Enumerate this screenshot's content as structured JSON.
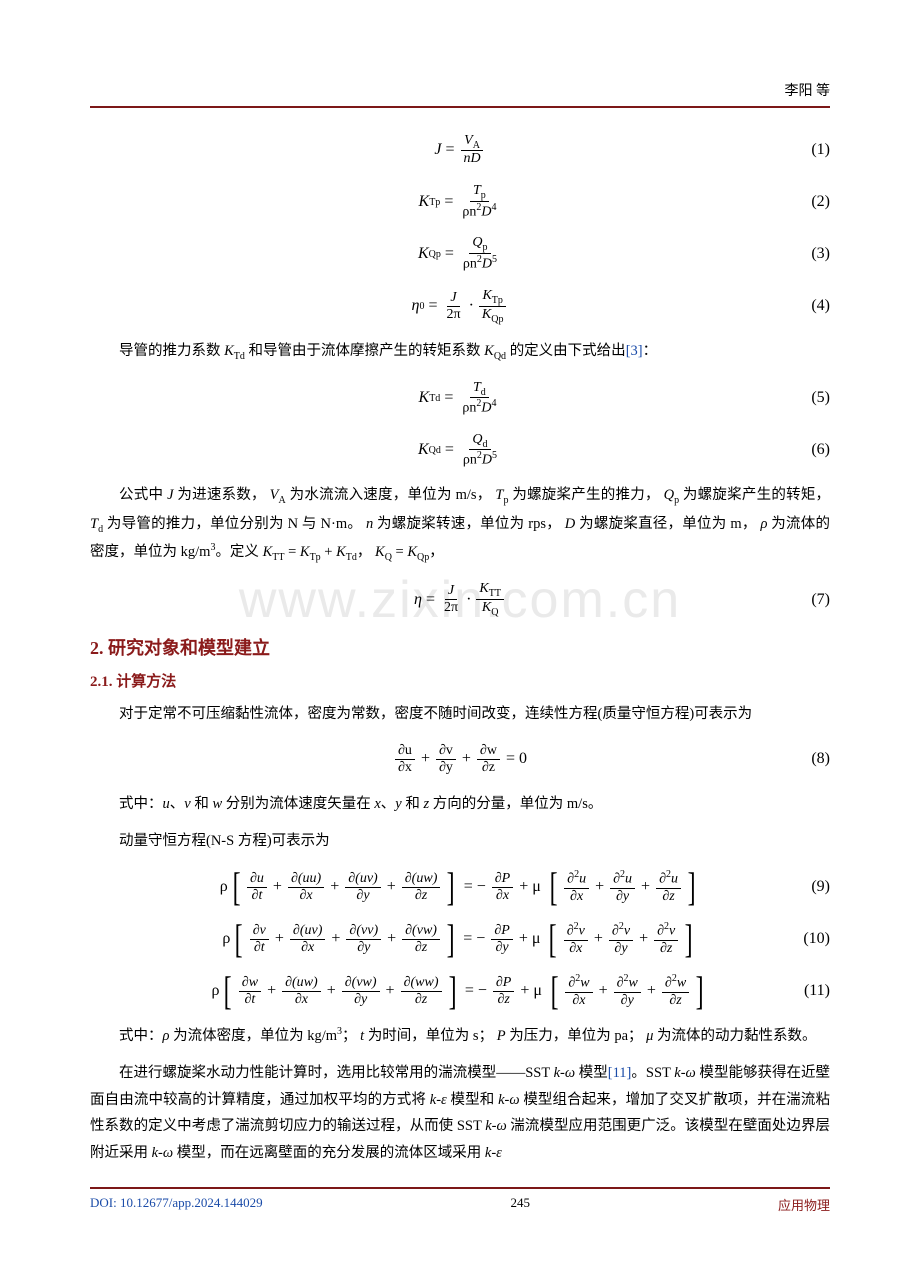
{
  "header": {
    "author": "李阳 等"
  },
  "watermark": "www.zixin.com.cn",
  "equations": {
    "eq1": {
      "lhs": "J",
      "num_n": "V",
      "num_n_sub": "A",
      "num_d": "nD",
      "label": "(1)"
    },
    "eq2": {
      "lhs": "K",
      "lhs_sub": "Tp",
      "n": "T",
      "n_sub": "p",
      "d_rho": "ρn",
      "d_exp1": "2",
      "d_D": "D",
      "d_exp2": "4",
      "label": "(2)"
    },
    "eq3": {
      "lhs": "K",
      "lhs_sub": "Qp",
      "n": "Q",
      "n_sub": "p",
      "d_exp2": "5",
      "label": "(3)"
    },
    "eq4": {
      "lhs": "η",
      "lhs_sub": "0",
      "f1_n": "J",
      "f1_d": "2π",
      "f2_n": "K",
      "f2_n_sub": "Tp",
      "f2_d": "K",
      "f2_d_sub": "Qp",
      "label": "(4)"
    },
    "eq5": {
      "lhs": "K",
      "lhs_sub": "Td",
      "n": "T",
      "n_sub": "d",
      "d_exp2": "4",
      "label": "(5)"
    },
    "eq6": {
      "lhs": "K",
      "lhs_sub": "Qd",
      "n": "Q",
      "n_sub": "d",
      "d_exp2": "5",
      "label": "(6)"
    },
    "eq7": {
      "lhs": "η",
      "f1_n": "J",
      "f1_d": "2π",
      "f2_n": "K",
      "f2_n_sub": "TT",
      "f2_d": "K",
      "f2_d_sub": "Q",
      "label": "(7)"
    },
    "eq8": {
      "t1n": "∂u",
      "t1d": "∂x",
      "t2n": "∂v",
      "t2d": "∂y",
      "t3n": "∂w",
      "t3d": "∂z",
      "rhs": "0",
      "label": "(8)"
    },
    "eq9": {
      "v": "u",
      "pvar": "x",
      "label": "(9)"
    },
    "eq10": {
      "v": "v",
      "pvar": "y",
      "label": "(10)"
    },
    "eq11": {
      "v": "w",
      "pvar": "z",
      "label": "(11)"
    }
  },
  "text": {
    "p1_pre": "导管的推力系数 ",
    "p1_k1": "K",
    "p1_k1_sub": "Td",
    "p1_mid1": " 和导管由于流体摩擦产生的转矩系数 ",
    "p1_k2": "K",
    "p1_k2_sub": "Qd",
    "p1_mid2": " 的定义由下式给出",
    "p1_cite": "[3]",
    "p1_end": "：",
    "p2_a": "公式中 ",
    "p2_J": "J",
    "p2_b": " 为进速系数，",
    "p2_V": "V",
    "p2_V_sub": "A",
    "p2_c": " 为水流流入速度，单位为 m/s，",
    "p2_Tp": "T",
    "p2_Tp_sub": "p",
    "p2_d": " 为螺旋桨产生的推力，",
    "p2_Qp": "Q",
    "p2_Qp_sub": "p",
    "p2_e": " 为螺旋桨产生的转矩，",
    "p2_Td": "T",
    "p2_Td_sub": "d",
    "p2_f": " 为导管的推力，单位分别为 N 与 N·m。",
    "p2_n": "n",
    "p2_g": " 为螺旋桨转速，单位为 rps，",
    "p2_D": "D",
    "p2_h": " 为螺旋桨直径，单位为 m，",
    "p2_rho": "ρ",
    "p2_i": " 为流体的密度，单位为 kg/m",
    "p2_exp3": "3",
    "p2_j": "。定义 ",
    "p2_KTT": "K",
    "p2_KTT_sub": "TT",
    "p2_eq": " = ",
    "p2_KTp": "K",
    "p2_KTp_sub": "Tp",
    "p2_plus": " + ",
    "p2_KTd": "K",
    "p2_KTd_sub": "Td",
    "p2_comma": "，",
    "p2_KQ": "K",
    "p2_KQ_sub": "Q",
    "p2_eq2": " = ",
    "p2_KQp": "K",
    "p2_KQp_sub": "Qp",
    "p2_end": "，",
    "p3": "对于定常不可压缩黏性流体，密度为常数，密度不随时间改变，连续性方程(质量守恒方程)可表示为",
    "p4_a": "式中：",
    "p4_u": "u",
    "p4_b": "、",
    "p4_v": "v",
    "p4_c": " 和 ",
    "p4_w": "w",
    "p4_d": " 分别为流体速度矢量在 ",
    "p4_x": "x",
    "p4_e": "、",
    "p4_y": "y",
    "p4_f": " 和 ",
    "p4_z": "z",
    "p4_g": " 方向的分量，单位为 m/s。",
    "p5": "动量守恒方程(N-S 方程)可表示为",
    "p6_a": "式中：",
    "p6_rho": "ρ",
    "p6_b": " 为流体密度，单位为 kg/m",
    "p6_exp3": "3",
    "p6_c": "；",
    "p6_t": "t",
    "p6_d": " 为时间，单位为 s；",
    "p6_P": "P",
    "p6_e": " 为压力，单位为 pa；",
    "p6_mu": "μ",
    "p6_f": " 为流体的动力黏性系数。",
    "p7_a": "在进行螺旋桨水动力性能计算时，选用比较常用的湍流模型——SST ",
    "p7_kw": "k-ω",
    "p7_b": " 模型",
    "p7_cite": "[11]",
    "p7_c": "。SST ",
    "p7_kw2": "k-ω",
    "p7_d": " 模型能够获得在近壁面自由流中较高的计算精度，通过加权平均的方式将 ",
    "p7_ke": "k-ε",
    "p7_e": " 模型和 ",
    "p7_kw3": "k-ω",
    "p7_f": " 模型组合起来，增加了交叉扩散项，并在湍流粘性系数的定义中考虑了湍流剪切应力的输送过程，从而使 SST ",
    "p7_kw4": "k-ω",
    "p7_g": " 湍流模型应用范围更广泛。该模型在壁面处边界层附近采用 ",
    "p7_kw5": "k-ω",
    "p7_h": " 模型，而在远离壁面的充分发展的流体区域采用 ",
    "p7_ke2": "k-ε"
  },
  "headings": {
    "h2": "2. 研究对象和模型建立",
    "h3": "2.1. 计算方法"
  },
  "footer": {
    "doi": "DOI: 10.12677/app.2024.144029",
    "page": "245",
    "journal": "应用物理"
  }
}
